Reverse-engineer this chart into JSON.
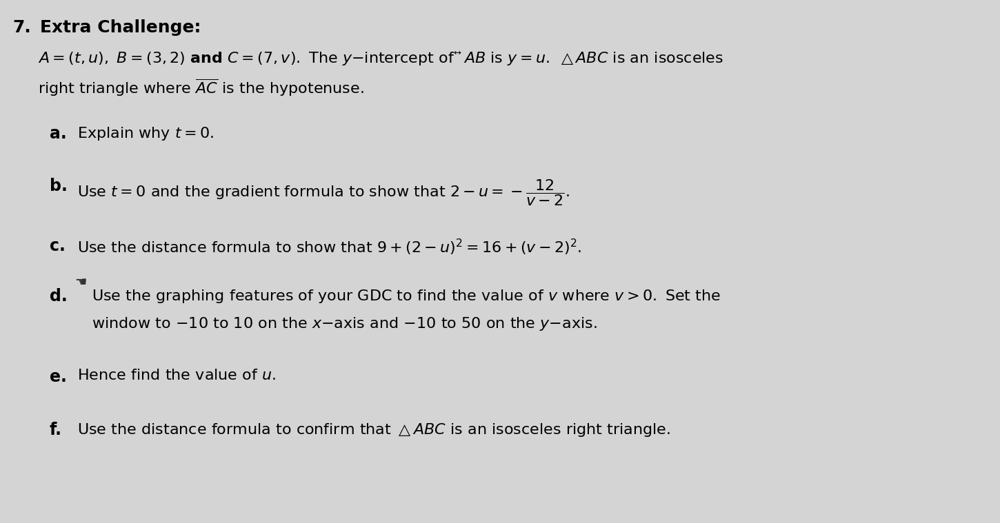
{
  "bg_color": "#d4d4d4",
  "text_color": "#000000",
  "fig_width": 14.5,
  "fig_height": 7.59,
  "dpi": 100
}
